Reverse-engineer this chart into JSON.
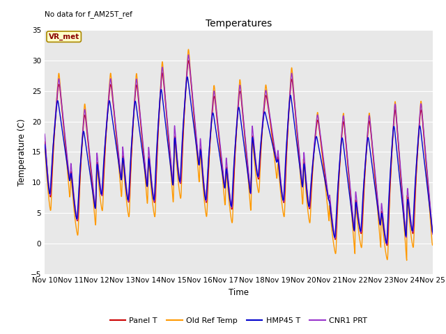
{
  "title": "Temperatures",
  "ylabel": "Temperature (C)",
  "xlabel": "Time",
  "no_data_text": "No data for f_AM25T_ref",
  "vr_met_label": "VR_met",
  "ylim": [
    -5,
    35
  ],
  "yticks": [
    -5,
    0,
    5,
    10,
    15,
    20,
    25,
    30,
    35
  ],
  "xtick_labels": [
    "Nov 10",
    "Nov 11",
    "Nov 12",
    "Nov 13",
    "Nov 14",
    "Nov 15",
    "Nov 16",
    "Nov 17",
    "Nov 18",
    "Nov 19",
    "Nov 20",
    "Nov 21",
    "Nov 22",
    "Nov 23",
    "Nov 24",
    "Nov 25"
  ],
  "colors": {
    "panel_t": "#cc0000",
    "old_ref_temp": "#ff9900",
    "hmp45_t": "#0000cc",
    "cnr1_prt": "#9933cc"
  },
  "legend_labels": [
    "Panel T",
    "Old Ref Temp",
    "HMP45 T",
    "CNR1 PRT"
  ],
  "plot_bg_color": "#e8e8e8",
  "fig_bg_color": "#ffffff"
}
